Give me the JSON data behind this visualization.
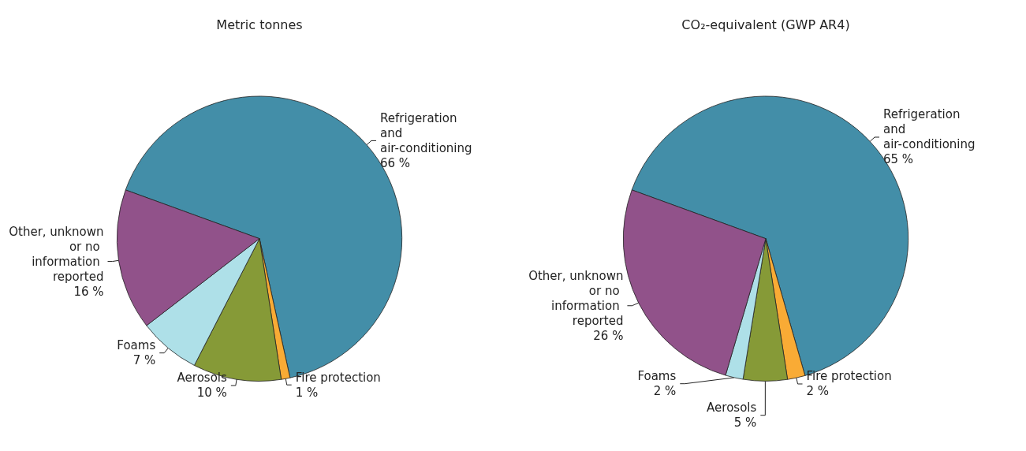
{
  "chart_data": [
    {
      "type": "pie",
      "title": "Metric tonnes",
      "categories": [
        "Refrigeration and air-conditioning",
        "Fire protection",
        "Aerosols",
        "Foams",
        "Other, unknown or no information reported"
      ],
      "values": [
        66,
        1,
        10,
        7,
        16
      ],
      "value_labels": [
        "66 %",
        "1 %",
        "10 %",
        "7 %",
        "16 %"
      ],
      "colors": [
        "#438ea8",
        "#f9ab35",
        "#869a37",
        "#aee0e8",
        "#91528a"
      ],
      "legend": false
    },
    {
      "type": "pie",
      "title": "CO₂-equivalent (GWP AR4)",
      "categories": [
        "Refrigeration and air-conditioning",
        "Fire protection",
        "Aerosols",
        "Foams",
        "Other, unknown or no information reported"
      ],
      "values": [
        65,
        2,
        5,
        2,
        26
      ],
      "value_labels": [
        "65 %",
        "2 %",
        "5 %",
        "2 %",
        "26 %"
      ],
      "colors": [
        "#438ea8",
        "#f9ab35",
        "#869a37",
        "#aee0e8",
        "#91528a"
      ],
      "legend": false
    }
  ]
}
